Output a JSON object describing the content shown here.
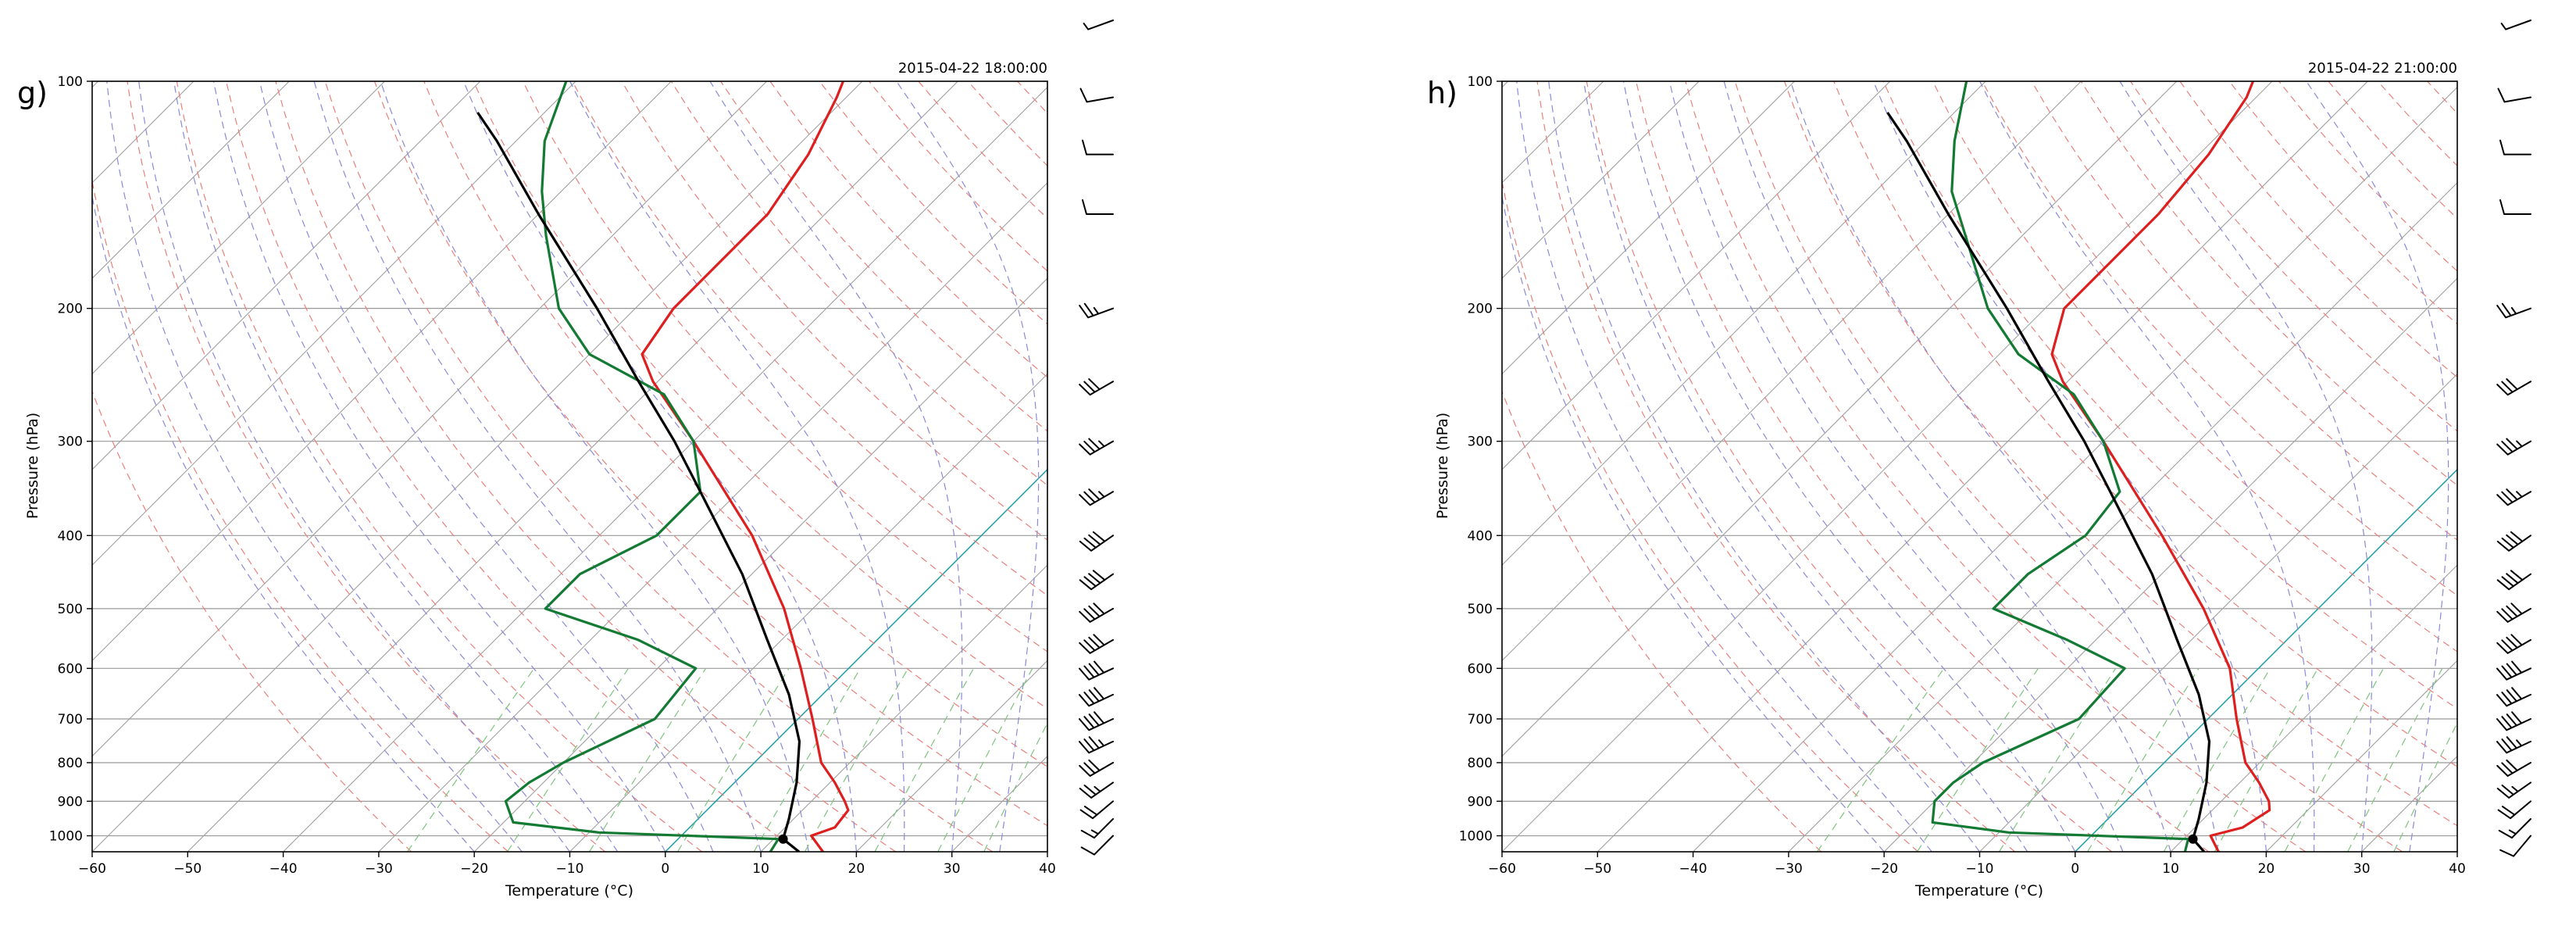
{
  "figure": {
    "panel_count": 2
  },
  "chart_data": [
    {
      "type": "skew-t",
      "panel_label": "g)",
      "title": "2015-04-22 18:00:00",
      "xlabel": "Temperature (°C)",
      "ylabel": "Pressure (hPa)",
      "xlim": [
        -60,
        40
      ],
      "ylim": [
        1050,
        100
      ],
      "xticks": [
        -60,
        -50,
        -40,
        -30,
        -20,
        -10,
        0,
        10,
        20,
        30,
        40
      ],
      "yticks": [
        100,
        200,
        300,
        400,
        500,
        600,
        700,
        800,
        900,
        1000
      ],
      "series": [
        {
          "name": "temperature",
          "color": "#dd1f1f",
          "points": [
            [
              1050,
              16.5
            ],
            [
              1000,
              13.6
            ],
            [
              975,
              15.2
            ],
            [
              925,
              14.8
            ],
            [
              900,
              13.5
            ],
            [
              850,
              10.5
            ],
            [
              800,
              7.0
            ],
            [
              700,
              1.5
            ],
            [
              600,
              -5.0
            ],
            [
              500,
              -13.0
            ],
            [
              400,
              -24.0
            ],
            [
              300,
              -40.0
            ],
            [
              250,
              -50.5
            ],
            [
              230,
              -54.5
            ],
            [
              200,
              -56.0
            ],
            [
              150,
              -56.0
            ],
            [
              125,
              -58.0
            ],
            [
              105,
              -61.0
            ],
            [
              100,
              -62.0
            ]
          ]
        },
        {
          "name": "dewpoint",
          "color": "#137a34",
          "points": [
            [
              1050,
              11.0
            ],
            [
              1010,
              10.5
            ],
            [
              990,
              -9.0
            ],
            [
              960,
              -19.0
            ],
            [
              900,
              -22.0
            ],
            [
              850,
              -21.5
            ],
            [
              800,
              -20.0
            ],
            [
              700,
              -15.0
            ],
            [
              600,
              -16.0
            ],
            [
              550,
              -25.0
            ],
            [
              500,
              -38.0
            ],
            [
              450,
              -38.0
            ],
            [
              400,
              -34.0
            ],
            [
              350,
              -34.0
            ],
            [
              300,
              -40.0
            ],
            [
              260,
              -48.0
            ],
            [
              230,
              -60.0
            ],
            [
              200,
              -68.0
            ],
            [
              160,
              -77.0
            ],
            [
              140,
              -82.0
            ],
            [
              120,
              -87.0
            ],
            [
              100,
              -91.0
            ]
          ]
        },
        {
          "name": "parcel",
          "color": "#000000",
          "points": [
            [
              1050,
              14.0
            ],
            [
              1010,
              11.0
            ],
            [
              950,
              9.5
            ],
            [
              850,
              6.5
            ],
            [
              750,
              2.5
            ],
            [
              650,
              -3.5
            ],
            [
              550,
              -11.5
            ],
            [
              450,
              -21.0
            ],
            [
              350,
              -34.0
            ],
            [
              300,
              -42.0
            ],
            [
              250,
              -52.0
            ],
            [
              200,
              -64.0
            ],
            [
              150,
              -80.0
            ],
            [
              120,
              -92.0
            ],
            [
              110,
              -97.0
            ]
          ]
        }
      ],
      "wind_barbs": [
        {
          "p": 1000,
          "direction": 225,
          "speed_kt": 10
        },
        {
          "p": 950,
          "direction": 225,
          "speed_kt": 15
        },
        {
          "p": 900,
          "direction": 230,
          "speed_kt": 20
        },
        {
          "p": 850,
          "direction": 235,
          "speed_kt": 25
        },
        {
          "p": 800,
          "direction": 240,
          "speed_kt": 30
        },
        {
          "p": 750,
          "direction": 245,
          "speed_kt": 35
        },
        {
          "p": 700,
          "direction": 245,
          "speed_kt": 40
        },
        {
          "p": 650,
          "direction": 245,
          "speed_kt": 40
        },
        {
          "p": 600,
          "direction": 245,
          "speed_kt": 40
        },
        {
          "p": 550,
          "direction": 240,
          "speed_kt": 40
        },
        {
          "p": 500,
          "direction": 240,
          "speed_kt": 40
        },
        {
          "p": 450,
          "direction": 235,
          "speed_kt": 40
        },
        {
          "p": 400,
          "direction": 235,
          "speed_kt": 40
        },
        {
          "p": 350,
          "direction": 240,
          "speed_kt": 35
        },
        {
          "p": 300,
          "direction": 240,
          "speed_kt": 35
        },
        {
          "p": 250,
          "direction": 240,
          "speed_kt": 30
        },
        {
          "p": 200,
          "direction": 250,
          "speed_kt": 25
        },
        {
          "p": 150,
          "direction": 270,
          "speed_kt": 10
        },
        {
          "p": 125,
          "direction": 270,
          "speed_kt": 10
        },
        {
          "p": 105,
          "direction": 260,
          "speed_kt": 10
        },
        {
          "p": 85,
          "direction": 250,
          "speed_kt": 5
        }
      ]
    },
    {
      "type": "skew-t",
      "panel_label": "h)",
      "title": "2015-04-22 21:00:00",
      "xlabel": "Temperature (°C)",
      "ylabel": "Pressure (hPa)",
      "xlim": [
        -60,
        40
      ],
      "ylim": [
        1050,
        100
      ],
      "xticks": [
        -60,
        -50,
        -40,
        -30,
        -20,
        -10,
        0,
        10,
        20,
        30,
        40
      ],
      "yticks": [
        100,
        200,
        300,
        400,
        500,
        600,
        700,
        800,
        900,
        1000
      ],
      "series": [
        {
          "name": "temperature",
          "color": "#dd1f1f",
          "points": [
            [
              1050,
              15.0
            ],
            [
              1000,
              12.5
            ],
            [
              975,
              15.0
            ],
            [
              925,
              16.0
            ],
            [
              900,
              15.0
            ],
            [
              850,
              12.0
            ],
            [
              800,
              8.5
            ],
            [
              700,
              3.0
            ],
            [
              600,
              -3.0
            ],
            [
              500,
              -12.0
            ],
            [
              400,
              -24.0
            ],
            [
              300,
              -40.0
            ],
            [
              250,
              -50.5
            ],
            [
              230,
              -54.5
            ],
            [
              200,
              -58.0
            ],
            [
              150,
              -58.0
            ],
            [
              125,
              -59.0
            ],
            [
              105,
              -61.0
            ],
            [
              100,
              -62.0
            ]
          ]
        },
        {
          "name": "dewpoint",
          "color": "#137a34",
          "points": [
            [
              1050,
              11.5
            ],
            [
              1010,
              10.5
            ],
            [
              990,
              -9.0
            ],
            [
              960,
              -18.0
            ],
            [
              900,
              -20.0
            ],
            [
              850,
              -20.0
            ],
            [
              800,
              -19.0
            ],
            [
              700,
              -13.5
            ],
            [
              600,
              -14.0
            ],
            [
              550,
              -23.0
            ],
            [
              500,
              -34.0
            ],
            [
              450,
              -34.0
            ],
            [
              400,
              -32.0
            ],
            [
              350,
              -33.0
            ],
            [
              300,
              -40.0
            ],
            [
              260,
              -48.0
            ],
            [
              230,
              -58.0
            ],
            [
              200,
              -66.0
            ],
            [
              160,
              -76.0
            ],
            [
              140,
              -82.0
            ],
            [
              120,
              -87.0
            ],
            [
              100,
              -92.0
            ]
          ]
        },
        {
          "name": "parcel",
          "color": "#000000",
          "points": [
            [
              1050,
              13.5
            ],
            [
              1010,
              11.0
            ],
            [
              950,
              9.5
            ],
            [
              850,
              6.5
            ],
            [
              750,
              2.5
            ],
            [
              650,
              -3.5
            ],
            [
              550,
              -11.5
            ],
            [
              450,
              -21.0
            ],
            [
              350,
              -34.0
            ],
            [
              300,
              -42.0
            ],
            [
              250,
              -52.0
            ],
            [
              200,
              -64.0
            ],
            [
              150,
              -80.0
            ],
            [
              120,
              -92.0
            ],
            [
              110,
              -97.0
            ]
          ]
        }
      ],
      "wind_barbs": [
        {
          "p": 1000,
          "direction": 220,
          "speed_kt": 10
        },
        {
          "p": 950,
          "direction": 225,
          "speed_kt": 15
        },
        {
          "p": 900,
          "direction": 230,
          "speed_kt": 20
        },
        {
          "p": 850,
          "direction": 235,
          "speed_kt": 25
        },
        {
          "p": 800,
          "direction": 240,
          "speed_kt": 30
        },
        {
          "p": 750,
          "direction": 245,
          "speed_kt": 35
        },
        {
          "p": 700,
          "direction": 245,
          "speed_kt": 40
        },
        {
          "p": 650,
          "direction": 245,
          "speed_kt": 40
        },
        {
          "p": 600,
          "direction": 245,
          "speed_kt": 40
        },
        {
          "p": 550,
          "direction": 240,
          "speed_kt": 40
        },
        {
          "p": 500,
          "direction": 240,
          "speed_kt": 40
        },
        {
          "p": 450,
          "direction": 235,
          "speed_kt": 40
        },
        {
          "p": 400,
          "direction": 235,
          "speed_kt": 40
        },
        {
          "p": 350,
          "direction": 240,
          "speed_kt": 35
        },
        {
          "p": 300,
          "direction": 240,
          "speed_kt": 35
        },
        {
          "p": 250,
          "direction": 240,
          "speed_kt": 30
        },
        {
          "p": 200,
          "direction": 250,
          "speed_kt": 25
        },
        {
          "p": 150,
          "direction": 270,
          "speed_kt": 10
        },
        {
          "p": 125,
          "direction": 270,
          "speed_kt": 10
        },
        {
          "p": 105,
          "direction": 260,
          "speed_kt": 10
        },
        {
          "p": 85,
          "direction": 250,
          "speed_kt": 5
        }
      ]
    }
  ],
  "colors": {
    "grid": "#999999",
    "isotherm": "#a0a0a0",
    "dry_adiabat": "#e8807a",
    "moist_adiabat": "#8a8ad8",
    "mixing_ratio": "#7cc47c",
    "zero_isotherm": "#1aa0a8",
    "temperature": "#dd1f1f",
    "dewpoint": "#137a34",
    "parcel": "#000000"
  }
}
